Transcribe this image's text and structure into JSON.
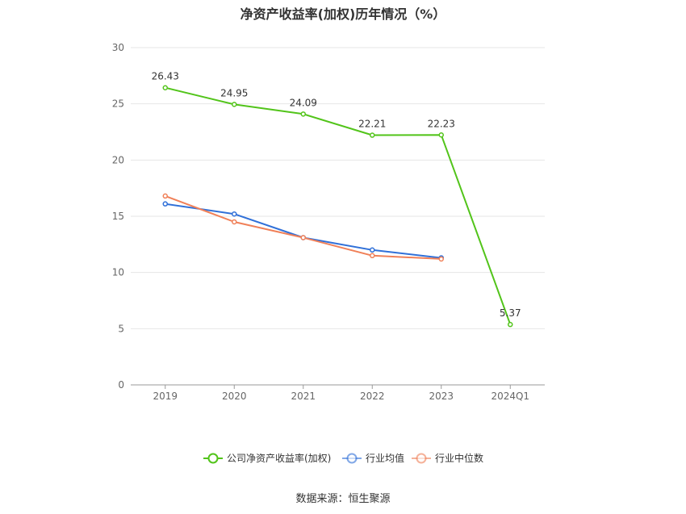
{
  "chart_data": {
    "type": "line",
    "title": "净资产收益率(加权)历年情况（%）",
    "categories": [
      "2019",
      "2020",
      "2021",
      "2022",
      "2023",
      "2024Q1"
    ],
    "ylim": [
      0,
      30
    ],
    "yticks": [
      0,
      5,
      10,
      15,
      20,
      25,
      30
    ],
    "grid": true,
    "legend_position": "bottom",
    "series": [
      {
        "name": "公司净资产收益率(加权)",
        "color": "#52c41a",
        "values": [
          26.43,
          24.95,
          24.09,
          22.21,
          22.23,
          5.37
        ],
        "labels": [
          "26.43",
          "24.95",
          "24.09",
          "22.21",
          "22.23",
          "5.37"
        ]
      },
      {
        "name": "行业均值",
        "color": "#3070d8",
        "values": [
          16.1,
          15.2,
          13.1,
          12.0,
          11.3,
          null
        ]
      },
      {
        "name": "行业中位数",
        "color": "#f08058",
        "values": [
          16.8,
          14.5,
          13.1,
          11.5,
          11.2,
          null
        ]
      }
    ]
  },
  "source": "数据来源：恒生聚源"
}
